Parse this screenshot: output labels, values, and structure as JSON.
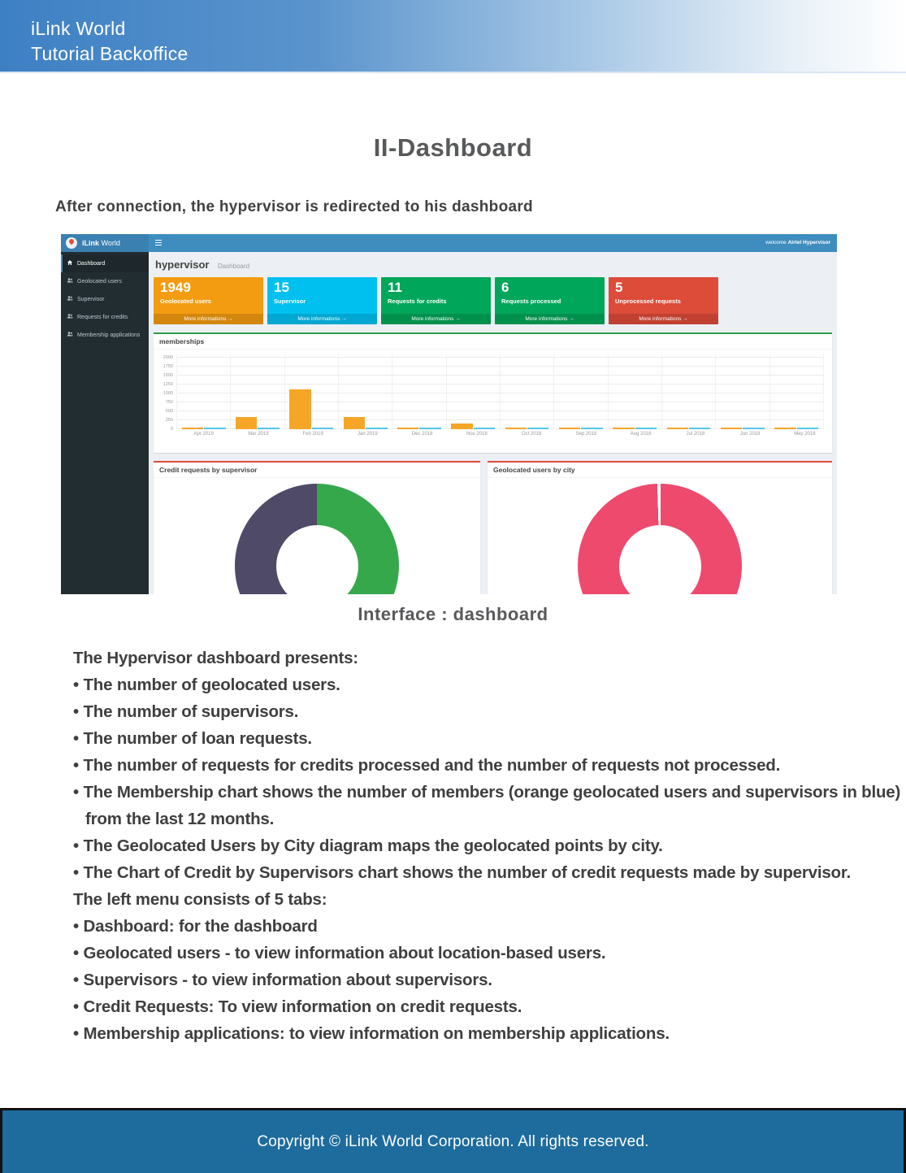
{
  "header": {
    "line1": "iLink World",
    "line2": "Tutorial Backoffice"
  },
  "title": "II-Dashboard",
  "intro": "After connection, the hypervisor is redirected to his dashboard",
  "screenshot": {
    "navbar": {
      "brand_bold": "iLink",
      "brand_rest": " World",
      "welcome_prefix": "welcome ",
      "welcome_user": "Airtel Hypervisor"
    },
    "sidebar": {
      "items": [
        {
          "label": "Dashboard",
          "icon": "dashboard",
          "active": true
        },
        {
          "label": "Geolocated users",
          "icon": "users",
          "active": false
        },
        {
          "label": "Supervisor",
          "icon": "users",
          "active": false
        },
        {
          "label": "Requests for credits",
          "icon": "users",
          "active": false
        },
        {
          "label": "Membership applications",
          "icon": "users",
          "active": false
        }
      ]
    },
    "content_header": {
      "title": "hypervisor",
      "subtitle": "Dashboard"
    },
    "stat_cards": [
      {
        "value": "1949",
        "label": "Geolocated users",
        "color": "#f39c12",
        "more_label": "More informations",
        "arrow": "→"
      },
      {
        "value": "15",
        "label": "Supervisor",
        "color": "#00c0ef",
        "more_label": "More informations",
        "arrow": "→"
      },
      {
        "value": "11",
        "label": "Requests for credits",
        "color": "#00a65a",
        "more_label": "More informations",
        "arrow": "→"
      },
      {
        "value": "6",
        "label": "Requests processed",
        "color": "#00a65a",
        "more_label": "More informations",
        "arrow": "→"
      },
      {
        "value": "5",
        "label": "Unprocessed requests",
        "color": "#dd4b39",
        "more_label": "More informations",
        "arrow": "→"
      }
    ],
    "panels": {
      "memberships_title": "memberships",
      "credit_title": "Credit requests by supervisor",
      "geo_title": "Geolocated users by city"
    }
  },
  "chart_data": [
    {
      "type": "bar",
      "title": "memberships",
      "categories": [
        "Apr 2019",
        "Mar 2019",
        "Feb 2019",
        "Jan 2019",
        "Dec 2018",
        "Nov 2018",
        "Oct 2018",
        "Sep 2018",
        "Aug 2018",
        "Jul 2018",
        "Jun 2018",
        "May 2018"
      ],
      "series": [
        {
          "name": "geolocated users (orange)",
          "color": "#f5a629",
          "values": [
            10,
            330,
            1120,
            340,
            15,
            160,
            15,
            15,
            15,
            15,
            15,
            15
          ]
        },
        {
          "name": "supervisors (blue)",
          "color": "#53c6ef",
          "values": [
            15,
            15,
            15,
            30,
            15,
            15,
            15,
            15,
            15,
            15,
            15,
            15
          ]
        }
      ],
      "xlabel": "",
      "ylabel": "",
      "ylim": [
        0,
        2000
      ],
      "yticks": [
        2000,
        1750,
        1500,
        1250,
        1000,
        750,
        500,
        250,
        0
      ],
      "grid": true,
      "legend": "none"
    },
    {
      "type": "pie",
      "subtype": "donut",
      "title": "Credit requests by supervisor",
      "slices": [
        {
          "label": "segment-green",
          "pct": 50,
          "color": "#35a84c"
        },
        {
          "label": "segment-slate",
          "pct": 50,
          "color": "#4f4a68"
        }
      ],
      "legend": "none"
    },
    {
      "type": "pie",
      "subtype": "donut",
      "title": "Geolocated users by city",
      "slices": [
        {
          "label": "dominant-city",
          "pct": 99.5,
          "color": "#ee4a6e"
        },
        {
          "label": "divider",
          "pct": 0.5,
          "color": "#ffffff"
        }
      ],
      "legend": "none"
    }
  ],
  "caption": "Interface : dashboard",
  "body": {
    "lines": [
      {
        "t": "The Hypervisor dashboard presents:",
        "ind": false
      },
      {
        "t": "• The number of geolocated users.",
        "ind": false
      },
      {
        "t": "• The number of supervisors.",
        "ind": false
      },
      {
        "t": "• The number of loan requests.",
        "ind": false
      },
      {
        "t": "• The number of requests for credits processed and the number of requests not processed.",
        "ind": false
      },
      {
        "t": "• The Membership chart shows the number of members (orange geolocated users and supervisors in blue)",
        "ind": false
      },
      {
        "t": "from the last 12 months.",
        "ind": true
      },
      {
        "t": "• The Geolocated Users by City diagram maps the geolocated points by city.",
        "ind": false
      },
      {
        "t": "• The Chart of Credit by Supervisors chart shows the number of credit requests made by supervisor.",
        "ind": false
      },
      {
        "t": "The left menu consists of 5 tabs:",
        "ind": false
      },
      {
        "t": "• Dashboard: for the dashboard",
        "ind": false
      },
      {
        "t": "• Geolocated users - to view information about location-based users.",
        "ind": false
      },
      {
        "t": "• Supervisors - to view information about supervisors.",
        "ind": false
      },
      {
        "t": "• Credit Requests: To view information on credit requests.",
        "ind": false
      },
      {
        "t": "• Membership applications: to view information on membership applications.",
        "ind": false
      }
    ]
  },
  "footer": {
    "text": "Copyright © iLink World Corporation. All rights reserved."
  }
}
